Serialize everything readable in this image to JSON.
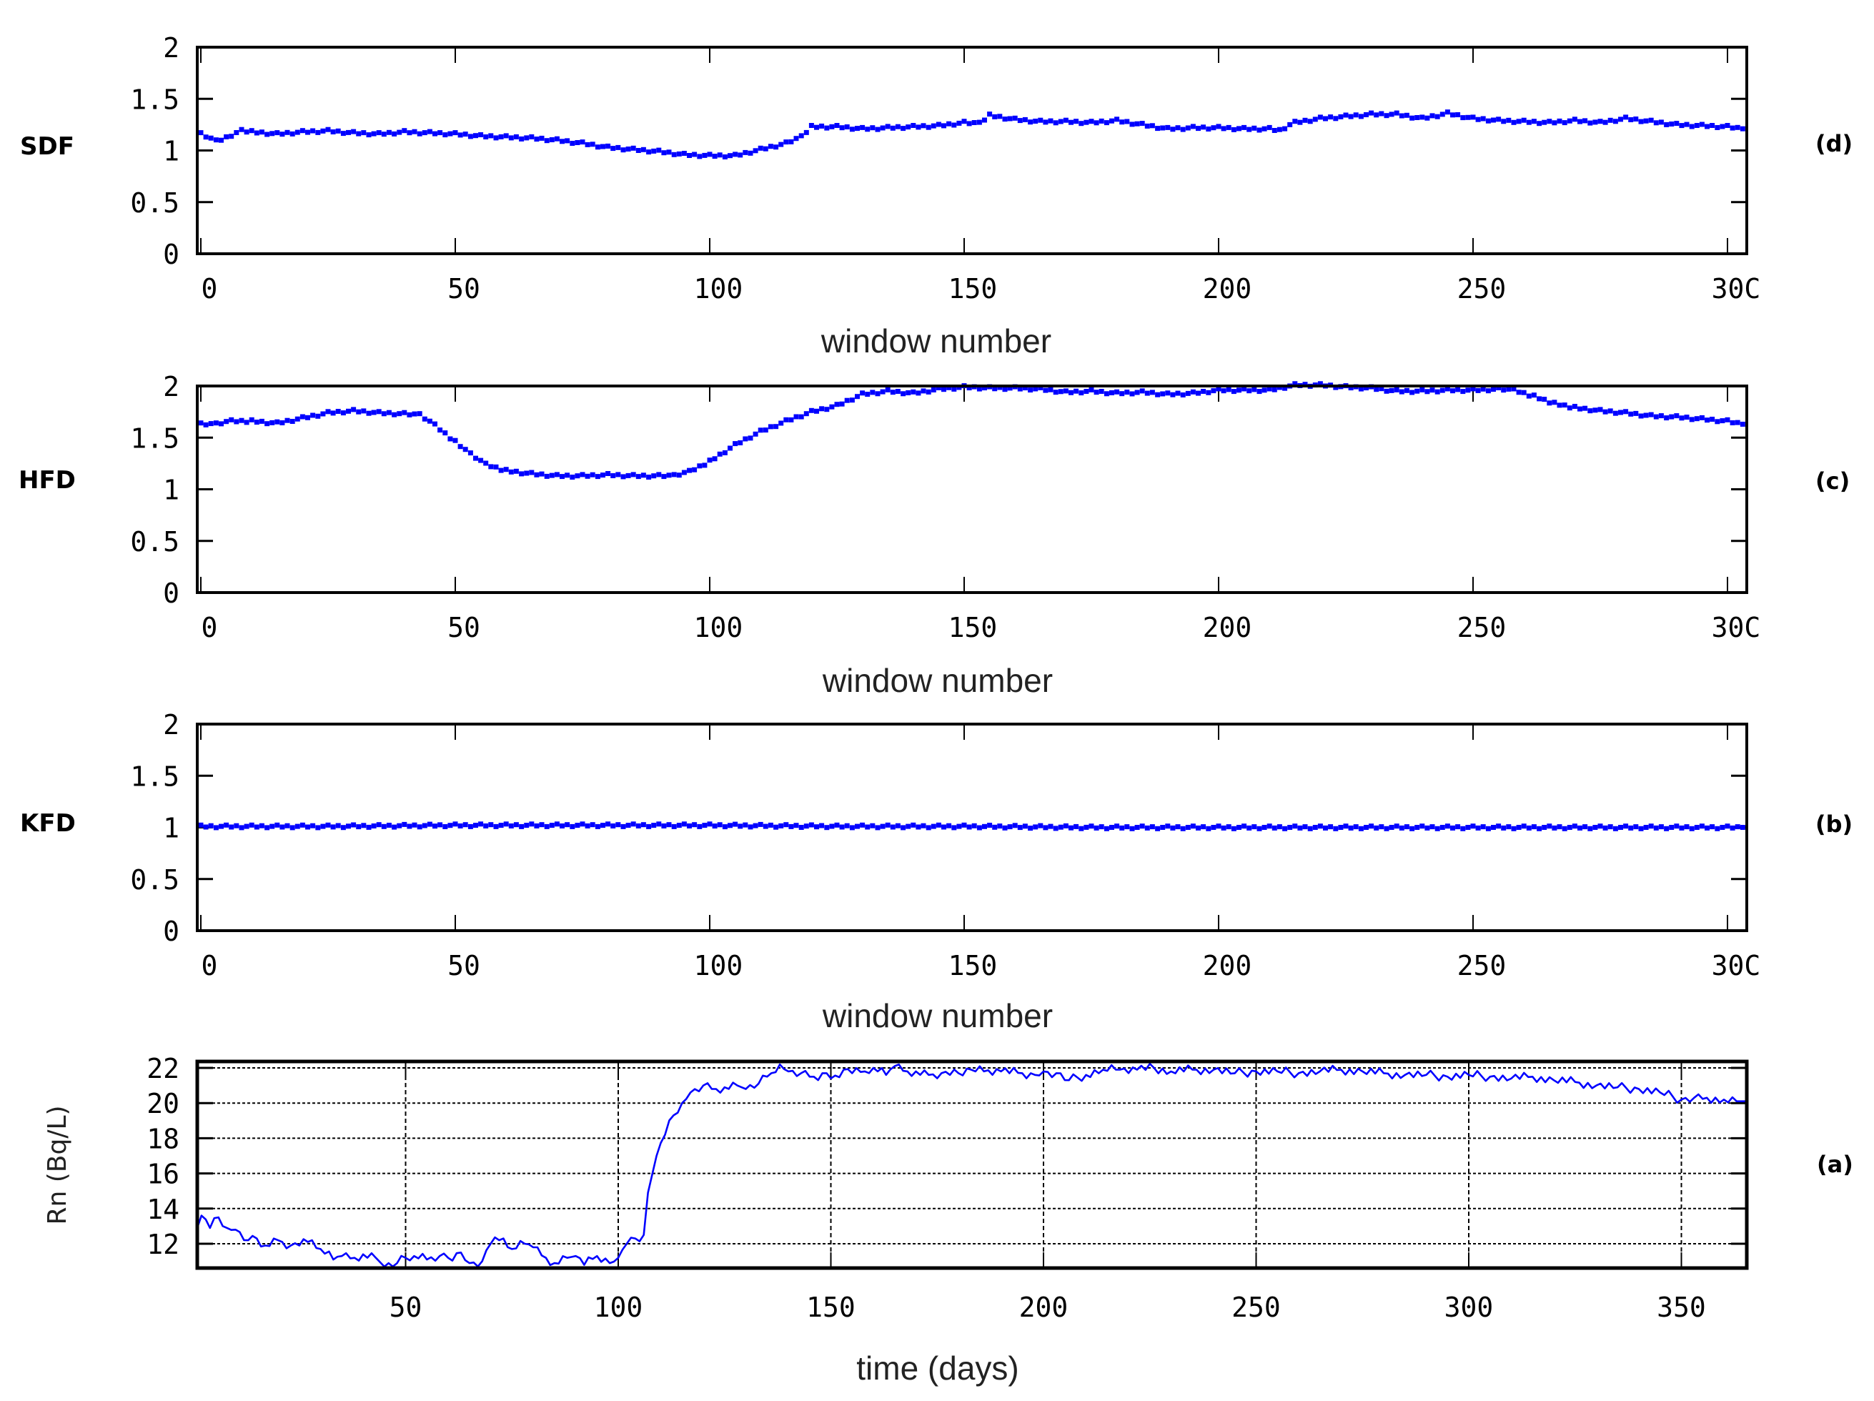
{
  "figure": {
    "panels": [
      {
        "id": "d",
        "tag": "(d)",
        "ylabel": "SDF",
        "xlabel": "window number"
      },
      {
        "id": "c",
        "tag": "(c)",
        "ylabel": "HFD",
        "xlabel": "window number"
      },
      {
        "id": "b",
        "tag": "(b)",
        "ylabel": "KFD",
        "xlabel": "window number"
      },
      {
        "id": "a",
        "tag": "(a)",
        "ylabel": "Rn (Bq/L)",
        "xlabel": "time (days)"
      }
    ]
  },
  "chart_data": [
    {
      "id": "d",
      "type": "scatter",
      "title": "",
      "ylabel": "SDF",
      "xlabel": "window number",
      "tag": "(d)",
      "xlim": [
        0,
        304
      ],
      "ylim": [
        0,
        2
      ],
      "xticks": [
        "0",
        "50",
        "100",
        "150",
        "200",
        "250",
        "300"
      ],
      "yticks": [
        "0",
        "0.5",
        "1",
        "1.5",
        "2"
      ],
      "grid": false,
      "color": "#0000ff",
      "x": [
        0,
        3,
        5,
        8,
        10,
        15,
        20,
        25,
        30,
        35,
        40,
        45,
        50,
        55,
        60,
        65,
        70,
        75,
        80,
        85,
        90,
        95,
        100,
        105,
        110,
        115,
        118,
        120,
        125,
        130,
        135,
        140,
        145,
        150,
        153,
        155,
        160,
        165,
        170,
        175,
        180,
        185,
        190,
        195,
        200,
        205,
        210,
        212,
        215,
        220,
        225,
        230,
        235,
        240,
        245,
        250,
        255,
        260,
        265,
        270,
        275,
        280,
        285,
        290,
        295,
        300,
        303
      ],
      "values": [
        1.16,
        1.09,
        1.12,
        1.19,
        1.18,
        1.16,
        1.18,
        1.19,
        1.17,
        1.16,
        1.18,
        1.17,
        1.16,
        1.14,
        1.13,
        1.12,
        1.1,
        1.07,
        1.03,
        1.01,
        0.99,
        0.96,
        0.95,
        0.95,
        1.01,
        1.07,
        1.13,
        1.23,
        1.23,
        1.21,
        1.22,
        1.23,
        1.24,
        1.27,
        1.26,
        1.34,
        1.3,
        1.28,
        1.28,
        1.27,
        1.29,
        1.25,
        1.21,
        1.22,
        1.22,
        1.21,
        1.21,
        1.19,
        1.27,
        1.31,
        1.33,
        1.35,
        1.35,
        1.31,
        1.36,
        1.31,
        1.29,
        1.28,
        1.27,
        1.29,
        1.27,
        1.31,
        1.28,
        1.25,
        1.24,
        1.23,
        1.21
      ]
    },
    {
      "id": "c",
      "type": "scatter",
      "title": "",
      "ylabel": "HFD",
      "xlabel": "window number",
      "tag": "(c)",
      "xlim": [
        0,
        304
      ],
      "ylim": [
        0,
        2
      ],
      "xticks": [
        "0",
        "50",
        "100",
        "150",
        "200",
        "250",
        "300"
      ],
      "yticks": [
        "0",
        "0.5",
        "1",
        "1.5",
        "2"
      ],
      "grid": false,
      "color": "#0000ff",
      "x": [
        0,
        3,
        6,
        10,
        15,
        20,
        25,
        30,
        35,
        40,
        43,
        46,
        50,
        53,
        56,
        60,
        65,
        70,
        75,
        80,
        85,
        90,
        93,
        96,
        100,
        105,
        110,
        115,
        120,
        125,
        130,
        135,
        140,
        145,
        150,
        155,
        160,
        165,
        170,
        175,
        180,
        185,
        190,
        195,
        200,
        205,
        210,
        215,
        220,
        225,
        230,
        235,
        240,
        245,
        250,
        255,
        258,
        262,
        266,
        270,
        275,
        280,
        285,
        290,
        295,
        300,
        303
      ],
      "values": [
        1.63,
        1.63,
        1.66,
        1.66,
        1.64,
        1.69,
        1.74,
        1.76,
        1.74,
        1.73,
        1.72,
        1.62,
        1.46,
        1.34,
        1.24,
        1.18,
        1.15,
        1.13,
        1.13,
        1.14,
        1.13,
        1.13,
        1.13,
        1.17,
        1.27,
        1.43,
        1.56,
        1.66,
        1.75,
        1.81,
        1.92,
        1.95,
        1.93,
        1.97,
        1.99,
        1.98,
        1.98,
        1.97,
        1.94,
        1.95,
        1.93,
        1.94,
        1.92,
        1.93,
        1.96,
        1.96,
        1.96,
        2.01,
        2.01,
        1.99,
        1.98,
        1.95,
        1.95,
        1.96,
        1.96,
        1.97,
        1.96,
        1.9,
        1.83,
        1.79,
        1.76,
        1.74,
        1.71,
        1.7,
        1.68,
        1.66,
        1.63
      ]
    },
    {
      "id": "b",
      "type": "scatter",
      "title": "",
      "ylabel": "KFD",
      "xlabel": "window number",
      "tag": "(b)",
      "xlim": [
        0,
        304
      ],
      "ylim": [
        0,
        2
      ],
      "xticks": [
        "0",
        "50",
        "100",
        "150",
        "200",
        "250",
        "300"
      ],
      "yticks": [
        "0",
        "0.5",
        "1",
        "1.5",
        "2"
      ],
      "grid": false,
      "color": "#0000ff",
      "x": [
        0,
        25,
        50,
        75,
        100,
        125,
        150,
        175,
        200,
        225,
        250,
        275,
        300,
        303
      ],
      "values": [
        1.01,
        1.01,
        1.02,
        1.02,
        1.02,
        1.01,
        1.01,
        1.0,
        1.0,
        1.0,
        1.0,
        1.0,
        1.0,
        1.0
      ]
    },
    {
      "id": "a",
      "type": "line",
      "title": "",
      "ylabel": "Rn (Bq/L)",
      "xlabel": "time (days)",
      "tag": "(a)",
      "xlim": [
        1,
        365
      ],
      "ylim": [
        10.6,
        22.4
      ],
      "xticks": [
        "50",
        "100",
        "150",
        "200",
        "250",
        "300",
        "350"
      ],
      "yticks": [
        "12",
        "14",
        "16",
        "18",
        "20",
        "22"
      ],
      "grid": true,
      "color": "#0000ff",
      "x": [
        1,
        2,
        4,
        6,
        8,
        10,
        13,
        15,
        17,
        20,
        23,
        25,
        28,
        30,
        33,
        35,
        38,
        40,
        43,
        45,
        48,
        50,
        52,
        55,
        58,
        60,
        63,
        65,
        68,
        70,
        73,
        75,
        78,
        80,
        83,
        85,
        88,
        90,
        92,
        95,
        98,
        100,
        102,
        104,
        106,
        107,
        109,
        111,
        113,
        115,
        117,
        120,
        123,
        125,
        128,
        130,
        133,
        136,
        138,
        140,
        143,
        146,
        149,
        150,
        153,
        155,
        158,
        160,
        163,
        165,
        168,
        170,
        173,
        176,
        178,
        180,
        183,
        186,
        190,
        195,
        198,
        200,
        203,
        206,
        210,
        214,
        218,
        222,
        226,
        230,
        235,
        240,
        245,
        250,
        255,
        260,
        265,
        270,
        275,
        280,
        285,
        290,
        295,
        300,
        305,
        310,
        315,
        320,
        325,
        330,
        335,
        340,
        345,
        350,
        353,
        356,
        360,
        363,
        365
      ],
      "values": [
        12.9,
        13.6,
        12.9,
        13.5,
        12.9,
        12.8,
        12.2,
        12.3,
        11.9,
        12.2,
        11.9,
        11.9,
        12.2,
        11.7,
        11.1,
        11.3,
        11.2,
        11.4,
        11.2,
        10.7,
        10.9,
        11.2,
        11.3,
        11.1,
        11.3,
        11.2,
        11.5,
        10.9,
        11.0,
        12.0,
        12.3,
        11.7,
        12.0,
        11.8,
        11.2,
        10.9,
        11.2,
        11.3,
        10.8,
        11.3,
        10.9,
        11.2,
        12.0,
        12.3,
        12.5,
        14.9,
        17.0,
        18.2,
        19.3,
        20.0,
        20.6,
        21.0,
        20.8,
        20.9,
        21.0,
        20.8,
        21.1,
        21.7,
        22.2,
        21.8,
        21.7,
        21.5,
        21.7,
        21.4,
        21.9,
        21.7,
        21.8,
        22.0,
        21.6,
        22.1,
        21.8,
        21.8,
        21.6,
        21.7,
        21.6,
        21.7,
        21.9,
        21.8,
        21.8,
        21.7,
        21.6,
        21.8,
        21.7,
        21.3,
        21.6,
        21.9,
        21.9,
        21.9,
        22.0,
        21.8,
        21.9,
        21.9,
        21.7,
        21.8,
        21.8,
        21.7,
        21.8,
        21.9,
        21.8,
        21.7,
        21.6,
        21.6,
        21.5,
        21.6,
        21.5,
        21.4,
        21.5,
        21.3,
        21.2,
        21.0,
        20.9,
        20.8,
        20.6,
        20.2,
        20.3,
        20.3,
        20.2,
        20.1,
        20.1
      ]
    }
  ]
}
